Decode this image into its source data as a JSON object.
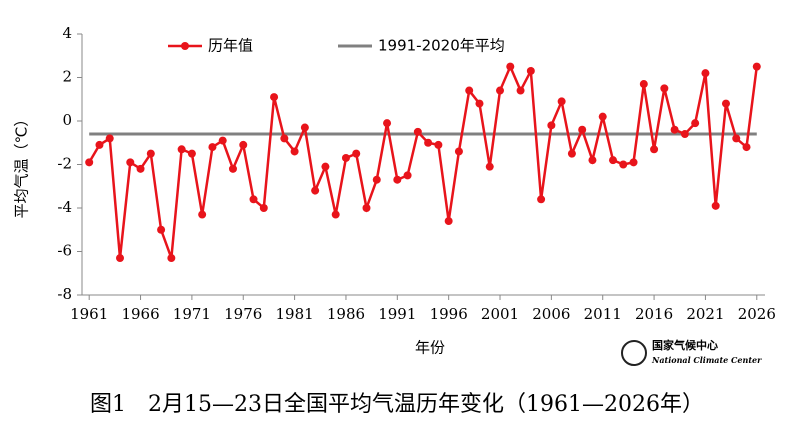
{
  "chart_data": {
    "type": "line",
    "y_label": "平均气温（℃）",
    "x_label": "年份",
    "x": [
      1961,
      1962,
      1963,
      1964,
      1965,
      1966,
      1967,
      1968,
      1969,
      1970,
      1971,
      1972,
      1973,
      1974,
      1975,
      1976,
      1977,
      1978,
      1979,
      1980,
      1981,
      1982,
      1983,
      1984,
      1985,
      1986,
      1987,
      1988,
      1989,
      1990,
      1991,
      1992,
      1993,
      1994,
      1995,
      1996,
      1997,
      1998,
      1999,
      2000,
      2001,
      2002,
      2003,
      2004,
      2005,
      2006,
      2007,
      2008,
      2009,
      2010,
      2011,
      2012,
      2013,
      2014,
      2015,
      2016,
      2017,
      2018,
      2019,
      2020,
      2021,
      2022,
      2023,
      2024,
      2025,
      2026
    ],
    "series": [
      {
        "name": "历年值",
        "color": "#e8141b",
        "values": [
          -1.9,
          -1.1,
          -0.8,
          -6.3,
          -1.9,
          -2.2,
          -1.5,
          -5.0,
          -6.3,
          -1.3,
          -1.5,
          -4.3,
          -1.2,
          -0.9,
          -2.2,
          -1.1,
          -3.6,
          -4.0,
          1.1,
          -0.8,
          -1.4,
          -0.3,
          -3.2,
          -2.1,
          -4.3,
          -1.7,
          -1.5,
          -4.0,
          -2.7,
          -0.1,
          -2.7,
          -2.5,
          -0.5,
          -1.0,
          -1.1,
          -4.6,
          -1.4,
          1.4,
          0.8,
          -2.1,
          1.4,
          2.5,
          1.4,
          2.3,
          -3.6,
          -0.2,
          0.9,
          -1.5,
          -0.4,
          -1.8,
          0.2,
          -1.8,
          -2.0,
          -1.9,
          1.7,
          -1.3,
          1.5,
          -0.4,
          -0.6,
          -0.1,
          2.2,
          -3.9,
          0.8,
          -0.8,
          -1.2,
          2.5
        ]
      }
    ],
    "reference": {
      "name": "1991-2020年平均",
      "color": "#808080",
      "value": -0.6
    },
    "xlim": [
      1960.3,
      2026.8
    ],
    "xticks": [
      1961,
      1966,
      1971,
      1976,
      1981,
      1986,
      1991,
      1996,
      2001,
      2006,
      2011,
      2016,
      2021,
      2026
    ],
    "ylim": [
      -8,
      4
    ],
    "yticks": [
      -8,
      -6,
      -4,
      -2,
      0,
      2,
      4
    ],
    "legend": "top"
  },
  "logo": {
    "name": "国家气候中心",
    "name_en": "National Climate Center"
  },
  "caption": "图1　2月15—23日全国平均气温历年变化（1961—2026年）"
}
